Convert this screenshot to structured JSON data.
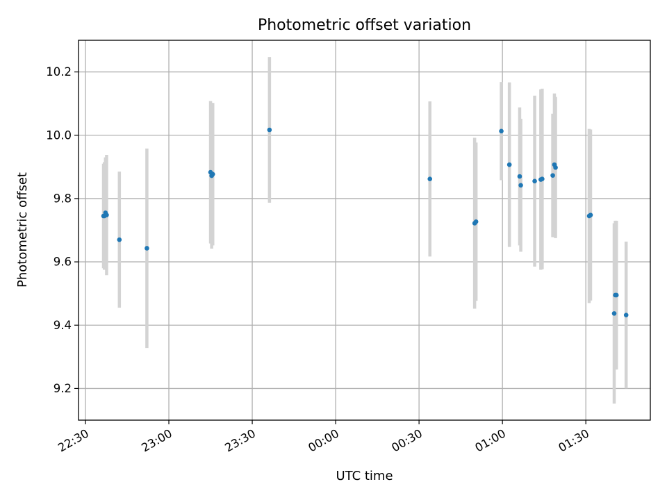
{
  "chart_data": {
    "type": "scatter",
    "title": "Photometric offset variation",
    "xlabel": "UTC time",
    "ylabel": "Photometric offset",
    "x_tick_labels": [
      "22:30",
      "23:00",
      "23:30",
      "00:00",
      "00:30",
      "01:00",
      "01:30"
    ],
    "x_tick_minutes": [
      0,
      30,
      60,
      90,
      120,
      150,
      180
    ],
    "y_ticks": [
      9.2,
      9.4,
      9.6,
      9.8,
      10.0,
      10.2
    ],
    "y_tick_labels": [
      "9.2",
      "9.4",
      "9.6",
      "9.8",
      "10.0",
      "10.2"
    ],
    "xlim_minutes": [
      -2.5,
      203.2
    ],
    "ylim": [
      9.1,
      10.3
    ],
    "grid": true,
    "colors": {
      "point": "#1f77b4",
      "errorbar": "#d3d3d3"
    },
    "series": [
      {
        "points": [
          {
            "t": 6.5,
            "y": 9.745,
            "err": 0.165
          },
          {
            "t": 6.8,
            "y": 9.745,
            "err": 0.17
          },
          {
            "t": 7.2,
            "y": 9.755,
            "err": 0.175
          },
          {
            "t": 7.6,
            "y": 9.748,
            "err": 0.19
          },
          {
            "t": 12.2,
            "y": 9.67,
            "err": 0.215
          },
          {
            "t": 22.1,
            "y": 9.643,
            "err": 0.315
          },
          {
            "t": 45.0,
            "y": 9.883,
            "err": 0.225
          },
          {
            "t": 45.4,
            "y": 9.872,
            "err": 0.23
          },
          {
            "t": 45.8,
            "y": 9.877,
            "err": 0.225
          },
          {
            "t": 66.2,
            "y": 10.017,
            "err": 0.23
          },
          {
            "t": 123.9,
            "y": 9.862,
            "err": 0.245
          },
          {
            "t": 140.0,
            "y": 9.722,
            "err": 0.27
          },
          {
            "t": 140.5,
            "y": 9.727,
            "err": 0.25
          },
          {
            "t": 149.6,
            "y": 10.013,
            "err": 0.155
          },
          {
            "t": 152.5,
            "y": 9.907,
            "err": 0.26
          },
          {
            "t": 156.2,
            "y": 9.87,
            "err": 0.218
          },
          {
            "t": 156.6,
            "y": 9.842,
            "err": 0.21
          },
          {
            "t": 161.6,
            "y": 9.855,
            "err": 0.27
          },
          {
            "t": 163.8,
            "y": 9.86,
            "err": 0.285
          },
          {
            "t": 164.3,
            "y": 9.862,
            "err": 0.285
          },
          {
            "t": 168.1,
            "y": 9.873,
            "err": 0.195
          },
          {
            "t": 168.7,
            "y": 9.907,
            "err": 0.225
          },
          {
            "t": 169.1,
            "y": 9.898,
            "err": 0.223
          },
          {
            "t": 181.2,
            "y": 9.745,
            "err": 0.275
          },
          {
            "t": 181.7,
            "y": 9.748,
            "err": 0.27
          },
          {
            "t": 190.2,
            "y": 9.437,
            "err": 0.285
          },
          {
            "t": 190.6,
            "y": 9.495,
            "err": 0.235
          },
          {
            "t": 191.0,
            "y": 9.495,
            "err": 0.235
          },
          {
            "t": 194.5,
            "y": 9.432,
            "err": 0.232
          }
        ]
      }
    ]
  }
}
